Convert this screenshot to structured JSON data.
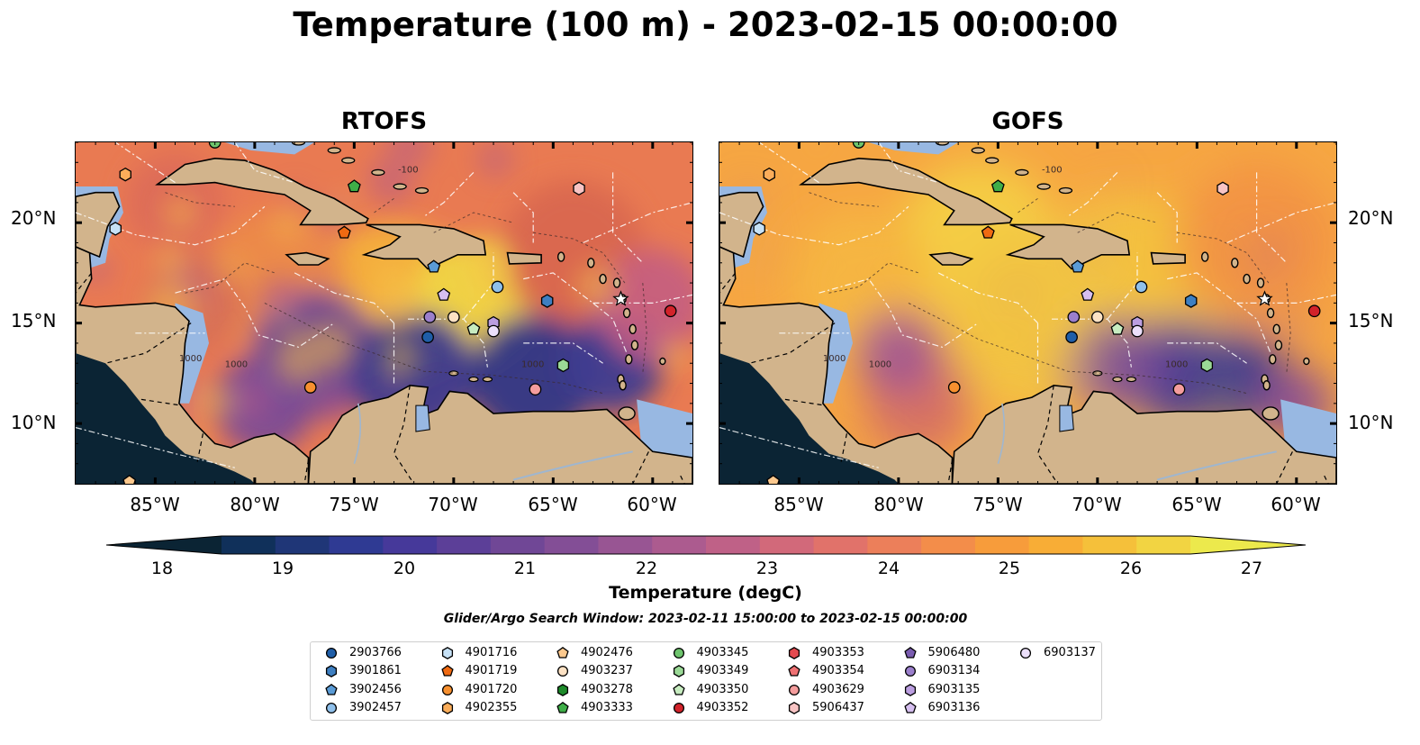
{
  "title": "Temperature (100 m) - 2023-02-15 00:00:00",
  "panels": [
    {
      "title": "RTOFS",
      "variant": "rtofs"
    },
    {
      "title": "GOFS",
      "variant": "gofs"
    }
  ],
  "map": {
    "lon_range": [
      -89,
      -58
    ],
    "lat_range": [
      7,
      24
    ],
    "lat_ticks": [
      "20°N",
      "15°N",
      "10°N"
    ],
    "lon_ticks": [
      "85°W",
      "80°W",
      "75°W",
      "70°W",
      "65°W",
      "60°W"
    ],
    "land_color": "#d2b48c",
    "shelf_color": "#98b8e2",
    "deep_land_color": "#0b2434",
    "contour_labels": [
      "1000",
      "1000",
      "1000",
      "-100"
    ]
  },
  "colorbar": {
    "min": 18,
    "max": 27,
    "ticks": [
      "18",
      "19",
      "20",
      "21",
      "22",
      "23",
      "24",
      "25",
      "26",
      "27"
    ],
    "label": "Temperature (degC)",
    "colors": [
      "#0b2434",
      "#10305a",
      "#1f3677",
      "#2f3a93",
      "#46399a",
      "#5c3f98",
      "#704796",
      "#834e96",
      "#985593",
      "#ac5b8f",
      "#bf6187",
      "#d2697a",
      "#e1726a",
      "#ec7f5a",
      "#f38d4a",
      "#f79c3b",
      "#f8ad36",
      "#f5c03a",
      "#f2d442",
      "#ece94c"
    ]
  },
  "search_window": "Glider/Argo Search Window: 2023-02-11 15:00:00 to 2023-02-15 00:00:00",
  "legend": [
    {
      "id": "2903766",
      "shape": "circle",
      "color": "#1f5ea8"
    },
    {
      "id": "3901861",
      "shape": "hexagon",
      "color": "#3e7fc1"
    },
    {
      "id": "3902456",
      "shape": "pentagon",
      "color": "#5a9bd6"
    },
    {
      "id": "3902457",
      "shape": "circle",
      "color": "#8fc0eb"
    },
    {
      "id": "4901716",
      "shape": "hexagon",
      "color": "#c6e1f6"
    },
    {
      "id": "4901719",
      "shape": "pentagon",
      "color": "#f06a12"
    },
    {
      "id": "4901720",
      "shape": "circle",
      "color": "#f7902f"
    },
    {
      "id": "4902355",
      "shape": "hexagon",
      "color": "#fbad5a"
    },
    {
      "id": "4902476",
      "shape": "pentagon",
      "color": "#fdc98e"
    },
    {
      "id": "4903237",
      "shape": "circle",
      "color": "#fde2c4"
    },
    {
      "id": "4903278",
      "shape": "hexagon",
      "color": "#1d8a2a"
    },
    {
      "id": "4903333",
      "shape": "pentagon",
      "color": "#3fae48"
    },
    {
      "id": "4903345",
      "shape": "circle",
      "color": "#6ec46d"
    },
    {
      "id": "4903349",
      "shape": "hexagon",
      "color": "#9ad996"
    },
    {
      "id": "4903350",
      "shape": "pentagon",
      "color": "#c7ecc0"
    },
    {
      "id": "4903352",
      "shape": "circle",
      "color": "#d2232a"
    },
    {
      "id": "4903353",
      "shape": "hexagon",
      "color": "#e34a4f"
    },
    {
      "id": "4903354",
      "shape": "pentagon",
      "color": "#ef7173"
    },
    {
      "id": "4903629",
      "shape": "circle",
      "color": "#f59d9d"
    },
    {
      "id": "5906437",
      "shape": "hexagon",
      "color": "#f8c4c4"
    },
    {
      "id": "5906480",
      "shape": "pentagon",
      "color": "#7a5cb0"
    },
    {
      "id": "6903134",
      "shape": "circle",
      "color": "#9b7fcc"
    },
    {
      "id": "6903135",
      "shape": "hexagon",
      "color": "#bb9ee0"
    },
    {
      "id": "6903136",
      "shape": "pentagon",
      "color": "#d6bff0"
    },
    {
      "id": "6903137",
      "shape": "circle",
      "color": "#ece0fb"
    }
  ],
  "floats": [
    {
      "id": "4902355",
      "lon": -86.5,
      "lat": 22.4
    },
    {
      "id": "4901716",
      "lon": -87.0,
      "lat": 19.7
    },
    {
      "id": "4903333",
      "lon": -75.0,
      "lat": 21.8
    },
    {
      "id": "4901719",
      "lon": -75.5,
      "lat": 19.5
    },
    {
      "id": "5906437",
      "lon": -63.7,
      "lat": 21.7
    },
    {
      "id": "3902456",
      "lon": -71.0,
      "lat": 17.8
    },
    {
      "id": "6903136",
      "lon": -70.5,
      "lat": 16.4
    },
    {
      "id": "3902457",
      "lon": -67.8,
      "lat": 16.8
    },
    {
      "id": "3901861",
      "lon": -65.3,
      "lat": 16.1
    },
    {
      "id": "6903134",
      "lon": -71.2,
      "lat": 15.3
    },
    {
      "id": "4903237",
      "lon": -70.0,
      "lat": 15.3
    },
    {
      "id": "4903350",
      "lon": -69.0,
      "lat": 14.7
    },
    {
      "id": "6903135",
      "lon": -68.0,
      "lat": 15.0
    },
    {
      "id": "6903137",
      "lon": -68.0,
      "lat": 14.6
    },
    {
      "id": "2903766",
      "lon": -71.3,
      "lat": 14.3
    },
    {
      "id": "4903349",
      "lon": -64.5,
      "lat": 12.9
    },
    {
      "id": "4901720",
      "lon": -77.2,
      "lat": 11.8
    },
    {
      "id": "4903629",
      "lon": -65.9,
      "lat": 11.7
    },
    {
      "id": "4903352",
      "lon": -59.1,
      "lat": 15.6
    },
    {
      "id": "4902476",
      "lon": -86.3,
      "lat": 7.1
    },
    {
      "id": "4903345",
      "lon": -82.0,
      "lat": 24.0
    }
  ]
}
